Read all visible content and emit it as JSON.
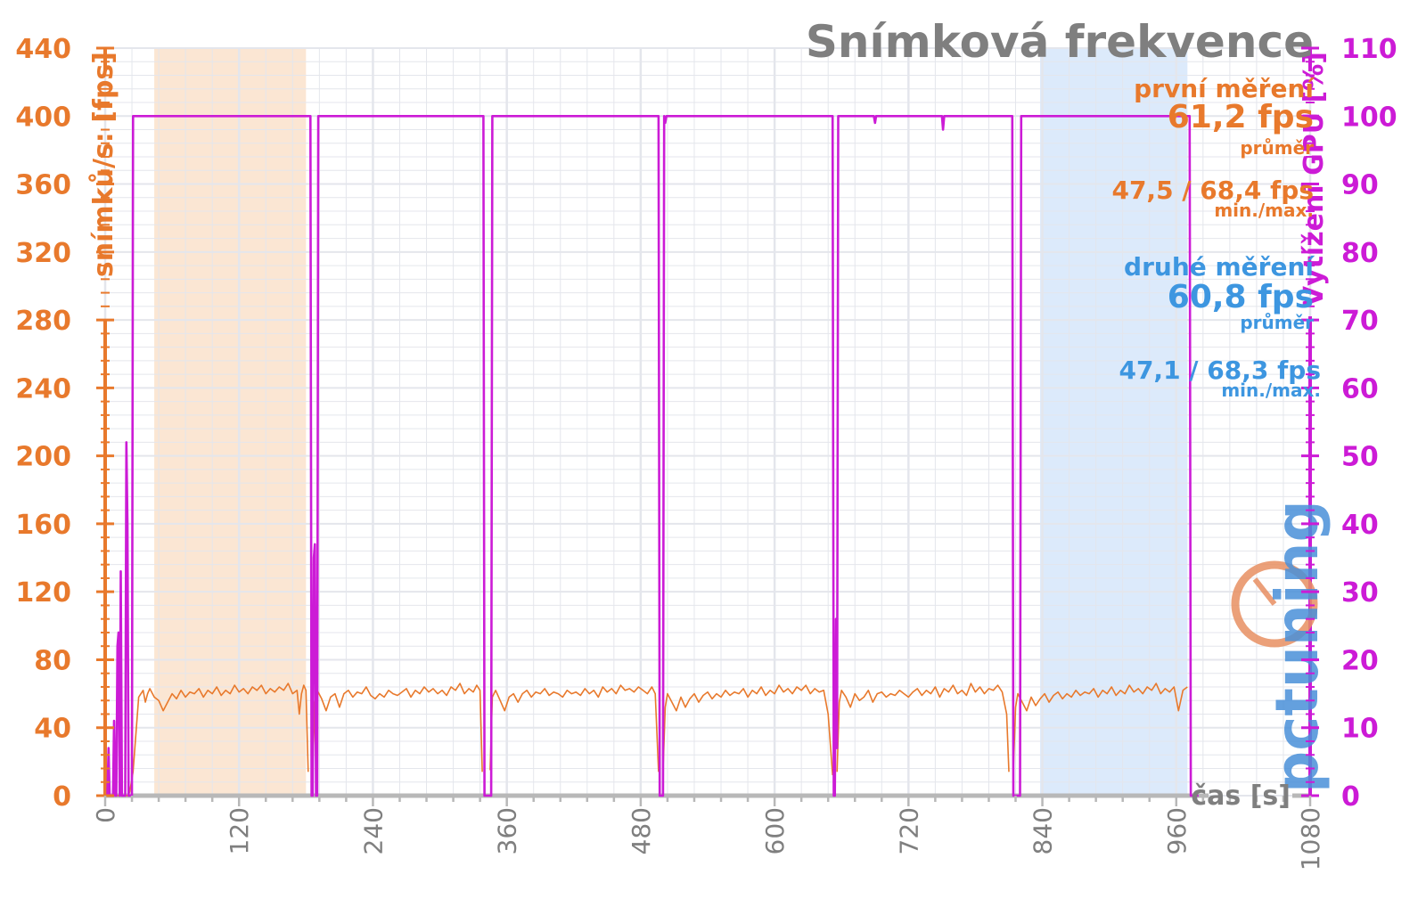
{
  "chart_data": {
    "type": "line",
    "title": "Snímková frekvence",
    "xlabel": "čas [s]",
    "ylabel": "snímků/s: [fps]",
    "y2label": "Vytížení GPU [%]",
    "xlim": [
      0,
      1080
    ],
    "ylim": [
      0,
      440
    ],
    "y2lim": [
      0,
      110
    ],
    "xticks": [
      "0",
      "120",
      "240",
      "360",
      "480",
      "600",
      "720",
      "840",
      "960",
      "1080"
    ],
    "yticks": [
      "0",
      "40",
      "80",
      "120",
      "160",
      "200",
      "240",
      "280",
      "320",
      "360",
      "400",
      "440"
    ],
    "y2ticks": [
      "0",
      "10",
      "20",
      "30",
      "40",
      "50",
      "60",
      "70",
      "80",
      "90",
      "100",
      "110"
    ],
    "grid": true,
    "highlight_regions": [
      {
        "x0": 44,
        "x1": 180,
        "color": "#fbe6d3"
      },
      {
        "x0": 838,
        "x1": 970,
        "color": "#dceafb"
      }
    ],
    "series": [
      {
        "axis": "left",
        "color": "#e8792c",
        "segments": [
          {
            "x": [
              0,
              4,
              8,
              12,
              16,
              20,
              22,
              25,
              30,
              34,
              36,
              38,
              40,
              44,
              48,
              52,
              56,
              60,
              64,
              68,
              72,
              76,
              80,
              84,
              88,
              92,
              96,
              100,
              104,
              108,
              112,
              116,
              120,
              124,
              128,
              132,
              136,
              140,
              144,
              148,
              152,
              156,
              160,
              164,
              168,
              172,
              174,
              176,
              178,
              180,
              182
            ],
            "y": [
              0,
              0,
              0,
              0,
              0,
              0,
              2,
              14,
              58,
              62,
              55,
              60,
              63,
              58,
              56,
              50,
              55,
              60,
              57,
              62,
              58,
              61,
              60,
              63,
              58,
              62,
              60,
              64,
              59,
              62,
              60,
              65,
              61,
              63,
              60,
              64,
              62,
              65,
              60,
              63,
              61,
              64,
              62,
              66,
              60,
              62,
              48,
              60,
              65,
              62,
              14
            ]
          },
          {
            "x": [
              186,
              188,
              190,
              194,
              198,
              202,
              206,
              210,
              214,
              218,
              222,
              226,
              230,
              234,
              238,
              242,
              246,
              250,
              254,
              258,
              262,
              266,
              270,
              274,
              278,
              282,
              286,
              290,
              294,
              298,
              302,
              306,
              310,
              314,
              318,
              322,
              326,
              330,
              333,
              336,
              338
            ],
            "y": [
              15,
              55,
              62,
              57,
              50,
              58,
              60,
              52,
              60,
              62,
              58,
              61,
              60,
              64,
              59,
              57,
              60,
              58,
              62,
              60,
              59,
              61,
              63,
              58,
              62,
              60,
              64,
              61,
              63,
              60,
              62,
              59,
              64,
              62,
              66,
              60,
              63,
              61,
              65,
              62,
              14
            ]
          },
          {
            "x": [
              345,
              347,
              350,
              354,
              358,
              362,
              366,
              370,
              374,
              378,
              382,
              386,
              390,
              394,
              398,
              402,
              406,
              410,
              414,
              418,
              422,
              426,
              430,
              434,
              438,
              442,
              446,
              450,
              454,
              458,
              462,
              466,
              470,
              474,
              478,
              482,
              486,
              490,
              493,
              496
            ],
            "y": [
              15,
              58,
              62,
              56,
              50,
              58,
              60,
              55,
              60,
              62,
              58,
              61,
              60,
              63,
              59,
              61,
              60,
              58,
              62,
              60,
              61,
              59,
              63,
              60,
              62,
              58,
              64,
              61,
              63,
              60,
              65,
              62,
              63,
              61,
              64,
              62,
              60,
              64,
              60,
              14
            ]
          },
          {
            "x": [
              500,
              502,
              504,
              508,
              512,
              516,
              520,
              524,
              528,
              532,
              536,
              540,
              544,
              548,
              552,
              556,
              560,
              564,
              568,
              572,
              576,
              580,
              584,
              588,
              592,
              596,
              600,
              604,
              608,
              612,
              616,
              620,
              624,
              628,
              632,
              636,
              640,
              644,
              648,
              652
            ],
            "y": [
              14,
              52,
              60,
              55,
              50,
              58,
              52,
              57,
              60,
              55,
              59,
              61,
              57,
              60,
              58,
              62,
              59,
              61,
              60,
              63,
              58,
              62,
              60,
              64,
              59,
              62,
              60,
              65,
              61,
              63,
              60,
              64,
              62,
              65,
              60,
              63,
              61,
              62,
              48,
              12
            ]
          },
          {
            "x": [
              656,
              658,
              660,
              664,
              668,
              672,
              676,
              680,
              684,
              688,
              692,
              696,
              700,
              704,
              708,
              712,
              716,
              720,
              724,
              728,
              732,
              736,
              740,
              744,
              748,
              752,
              756,
              760,
              764,
              768,
              772,
              776,
              780,
              784,
              788,
              792,
              796,
              800,
              804,
              808,
              810
            ],
            "y": [
              14,
              55,
              62,
              58,
              52,
              60,
              56,
              58,
              62,
              55,
              60,
              61,
              58,
              60,
              59,
              62,
              60,
              58,
              61,
              63,
              59,
              62,
              60,
              64,
              58,
              63,
              61,
              65,
              60,
              62,
              59,
              66,
              61,
              64,
              60,
              63,
              62,
              65,
              61,
              48,
              14
            ]
          },
          {
            "x": [
              814,
              816,
              818,
              822,
              826,
              830,
              834,
              838,
              842,
              846,
              850,
              854,
              858,
              862,
              866,
              870,
              874,
              878,
              882,
              886,
              890,
              894,
              898,
              902,
              906,
              910,
              914,
              918,
              922,
              926,
              930,
              934,
              938,
              942,
              946,
              950,
              954,
              958,
              962,
              966,
              970
            ],
            "y": [
              15,
              52,
              60,
              55,
              50,
              58,
              53,
              57,
              60,
              55,
              59,
              61,
              57,
              60,
              58,
              62,
              59,
              61,
              60,
              63,
              58,
              62,
              60,
              64,
              59,
              62,
              60,
              65,
              61,
              63,
              60,
              64,
              62,
              66,
              60,
              63,
              61,
              64,
              50,
              62,
              64
            ]
          }
        ]
      },
      {
        "axis": "right",
        "color": "#cc1bd6",
        "segments": [
          {
            "x": [
              0,
              2,
              3,
              4,
              5,
              7,
              8,
              9,
              10,
              11,
              12,
              13,
              14,
              15,
              16,
              17,
              18,
              19,
              20,
              21,
              22,
              23,
              24,
              25,
              26,
              27,
              184,
              185,
              186,
              187,
              188,
              189,
              190,
              191,
              339,
              340,
              346,
              347,
              496,
              497,
              500,
              501,
              502,
              503,
              504,
              652,
              653,
              654,
              655,
              656,
              657,
              689,
              690,
              691,
              750,
              751,
              752,
              813,
              814,
              820,
              821,
              972,
              973,
              980
            ],
            "y": [
              0,
              0,
              7,
              0,
              0,
              0,
              11,
              0,
              0,
              22,
              24,
              0,
              33,
              0,
              0,
              0,
              0,
              52,
              40,
              0,
              0,
              0,
              0,
              100,
              100,
              100,
              100,
              0,
              0,
              35,
              37,
              0,
              0,
              100,
              100,
              0,
              0,
              100,
              100,
              0,
              0,
              100,
              99,
              100,
              100,
              100,
              0,
              0,
              26,
              7,
              100,
              100,
              99,
              100,
              100,
              98,
              100,
              100,
              0,
              0,
              100,
              100,
              0,
              0
            ]
          }
        ]
      }
    ]
  },
  "annotations": {
    "first": {
      "title": "první měření",
      "avg": "61,2 fps",
      "avg_label": "průměr",
      "minmax": "47,5 / 68,4 fps",
      "minmax_label": "min./max.",
      "color": "#e8792c"
    },
    "second": {
      "title": "druhé měření",
      "avg": "60,8 fps",
      "avg_label": "průměr",
      "minmax": "47,1 / 68,3 fps",
      "minmax_label": "min./max.",
      "color": "#3d96e0"
    }
  },
  "logo": {
    "text": "pctuning"
  },
  "colors": {
    "fps": "#e8792c",
    "gpu": "#cc1bd6",
    "grid": "#e4e6ec",
    "axis": "#b8b8b8",
    "title": "#7f7f7f"
  }
}
